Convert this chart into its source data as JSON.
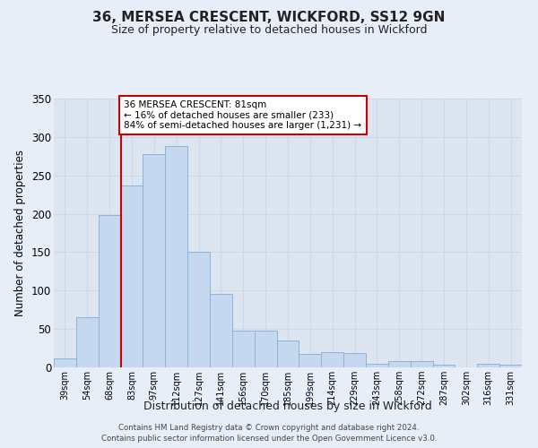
{
  "title": "36, MERSEA CRESCENT, WICKFORD, SS12 9GN",
  "subtitle": "Size of property relative to detached houses in Wickford",
  "xlabel": "Distribution of detached houses by size in Wickford",
  "ylabel": "Number of detached properties",
  "bar_color": "#c5d8ef",
  "bar_edge_color": "#8ab4d8",
  "categories": [
    "39sqm",
    "54sqm",
    "68sqm",
    "83sqm",
    "97sqm",
    "112sqm",
    "127sqm",
    "141sqm",
    "156sqm",
    "170sqm",
    "185sqm",
    "199sqm",
    "214sqm",
    "229sqm",
    "243sqm",
    "258sqm",
    "272sqm",
    "287sqm",
    "302sqm",
    "316sqm",
    "331sqm"
  ],
  "values": [
    12,
    65,
    198,
    237,
    278,
    288,
    150,
    96,
    48,
    48,
    35,
    17,
    20,
    19,
    5,
    8,
    8,
    4,
    0,
    5,
    4
  ],
  "vline_x_idx": 3,
  "vline_color": "#cc0000",
  "annotation_text": "36 MERSEA CRESCENT: 81sqm\n← 16% of detached houses are smaller (233)\n84% of semi-detached houses are larger (1,231) →",
  "annotation_box_color": "#ffffff",
  "annotation_box_edge": "#cc0000",
  "ylim": [
    0,
    350
  ],
  "yticks": [
    0,
    50,
    100,
    150,
    200,
    250,
    300,
    350
  ],
  "grid_color": "#d0d8e8",
  "background_color": "#dde5f0",
  "fig_bg_color": "#e8eef8",
  "footer_line1": "Contains HM Land Registry data © Crown copyright and database right 2024.",
  "footer_line2": "Contains public sector information licensed under the Open Government Licence v3.0."
}
